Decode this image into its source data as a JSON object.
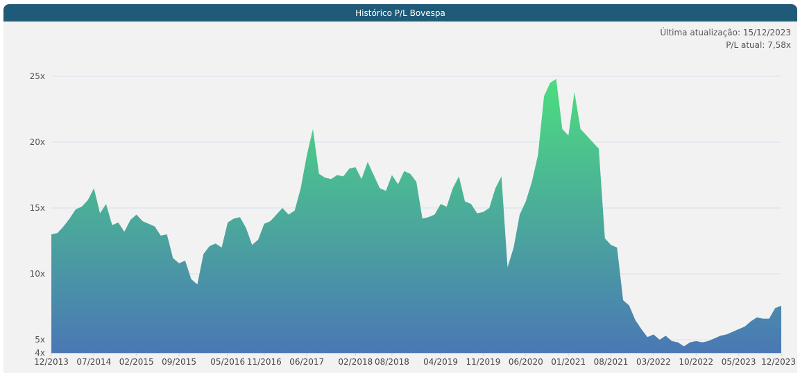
{
  "header": {
    "title": "Histórico P/L Bovespa"
  },
  "info": {
    "last_update": "Última atualização: 15/12/2023",
    "current_pl": "P/L atual: 7,58x"
  },
  "chart_data": {
    "type": "area",
    "title": "Histórico P/L Bovespa",
    "xlabel": "",
    "ylabel": "",
    "ylim": [
      4,
      25
    ],
    "grid": true,
    "y_ticks": [
      {
        "value": 4,
        "label": "4x"
      },
      {
        "value": 5,
        "label": "5x"
      },
      {
        "value": 10,
        "label": "10x"
      },
      {
        "value": 15,
        "label": "15x"
      },
      {
        "value": 20,
        "label": "20x"
      },
      {
        "value": 25,
        "label": "25x"
      }
    ],
    "x_ticks": [
      "12/2013",
      "07/2014",
      "02/2015",
      "09/2015",
      "05/2016",
      "11/2016",
      "06/2017",
      "02/2018",
      "08/2018",
      "04/2019",
      "11/2019",
      "06/2020",
      "01/2021",
      "08/2021",
      "03/2022",
      "10/2022",
      "05/2023",
      "12/2023"
    ],
    "colors": {
      "top": "#4cdd7f",
      "bottom": "#4a78b5"
    },
    "series": [
      {
        "x": [
          "2013-12",
          "2014-01",
          "2014-02",
          "2014-03",
          "2014-04",
          "2014-05",
          "2014-06",
          "2014-07",
          "2014-08",
          "2014-09",
          "2014-10",
          "2014-11",
          "2014-12",
          "2015-01",
          "2015-02",
          "2015-03",
          "2015-04",
          "2015-05",
          "2015-06",
          "2015-07",
          "2015-08",
          "2015-09",
          "2015-10",
          "2015-11",
          "2015-12",
          "2016-01",
          "2016-02",
          "2016-03",
          "2016-04",
          "2016-05",
          "2016-06",
          "2016-07",
          "2016-08",
          "2016-09",
          "2016-10",
          "2016-11",
          "2016-12",
          "2017-01",
          "2017-02",
          "2017-03",
          "2017-04",
          "2017-05",
          "2017-06",
          "2017-07",
          "2017-08",
          "2017-09",
          "2017-10",
          "2017-11",
          "2017-12",
          "2018-01",
          "2018-02",
          "2018-03",
          "2018-04",
          "2018-05",
          "2018-06",
          "2018-07",
          "2018-08",
          "2018-09",
          "2018-10",
          "2018-11",
          "2018-12",
          "2019-01",
          "2019-02",
          "2019-03",
          "2019-04",
          "2019-05",
          "2019-06",
          "2019-07",
          "2019-08",
          "2019-09",
          "2019-10",
          "2019-11",
          "2019-12",
          "2020-01",
          "2020-02",
          "2020-03",
          "2020-04",
          "2020-05",
          "2020-06",
          "2020-07",
          "2020-08",
          "2020-09",
          "2020-10",
          "2020-11",
          "2020-12",
          "2021-01",
          "2021-02",
          "2021-03",
          "2021-04",
          "2021-05",
          "2021-06",
          "2021-07",
          "2021-08",
          "2021-09",
          "2021-10",
          "2021-11",
          "2021-12",
          "2022-01",
          "2022-02",
          "2022-03",
          "2022-04",
          "2022-05",
          "2022-06",
          "2022-07",
          "2022-08",
          "2022-09",
          "2022-10",
          "2022-11",
          "2022-12",
          "2023-01",
          "2023-02",
          "2023-03",
          "2023-04",
          "2023-05",
          "2023-06",
          "2023-07",
          "2023-08",
          "2023-09",
          "2023-10",
          "2023-11",
          "2023-12"
        ],
        "values": [
          13.0,
          13.1,
          13.6,
          14.2,
          14.9,
          15.1,
          15.6,
          16.5,
          14.6,
          15.3,
          13.7,
          13.9,
          13.2,
          14.1,
          14.5,
          14.0,
          13.8,
          13.6,
          12.9,
          13.0,
          11.2,
          10.8,
          11.0,
          9.6,
          9.2,
          11.5,
          12.1,
          12.3,
          12.0,
          13.9,
          14.2,
          14.3,
          13.5,
          12.2,
          12.6,
          13.8,
          14.0,
          14.5,
          15.0,
          14.5,
          14.8,
          16.5,
          19.0,
          21.0,
          17.6,
          17.3,
          17.2,
          17.5,
          17.4,
          18.0,
          18.1,
          17.2,
          18.5,
          17.5,
          16.5,
          16.3,
          17.5,
          16.8,
          17.8,
          17.6,
          17.0,
          14.2,
          14.3,
          14.5,
          15.3,
          15.1,
          16.5,
          17.4,
          15.5,
          15.3,
          14.6,
          14.7,
          15.0,
          16.5,
          17.4,
          10.5,
          12.0,
          14.5,
          15.5,
          17.0,
          19.0,
          23.5,
          24.5,
          24.8,
          21.0,
          20.5,
          23.8,
          21.0,
          20.5,
          20.0,
          19.5,
          12.7,
          12.2,
          12.0,
          8.0,
          7.6,
          6.5,
          5.8,
          5.2,
          5.4,
          5.0,
          5.3,
          4.9,
          4.8,
          4.5,
          4.8,
          4.9,
          4.8,
          4.9,
          5.1,
          5.3,
          5.4,
          5.6,
          5.8,
          6.0,
          6.4,
          6.7,
          6.6,
          6.6,
          7.4,
          7.58
        ]
      }
    ]
  }
}
